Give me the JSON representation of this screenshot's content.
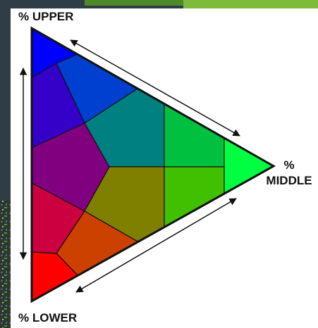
{
  "labels": {
    "upper": "% UPPER",
    "middle_percent": "%",
    "middle": "MIDDLE",
    "lower": "% LOWER"
  }
}
